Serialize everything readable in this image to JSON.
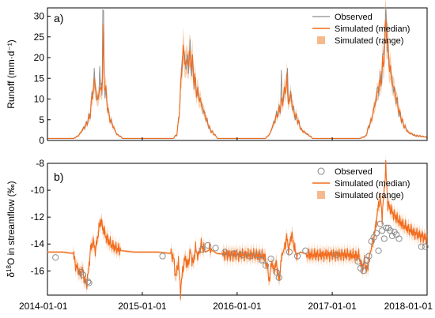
{
  "colors": {
    "observed": "#8c8c8c",
    "simulated_median": "#f26b1d",
    "simulated_range": "#f6b98c",
    "axis": "#000000"
  },
  "x_axis": {
    "tick_labels": [
      "2014-01-01",
      "2015-01-01",
      "2016-01-01",
      "2017-01-01",
      "2018-01-01"
    ],
    "xlim": [
      "2014-01-01",
      "2018-01-01"
    ]
  },
  "chart_data": [
    {
      "panel_label": "a)",
      "type": "line",
      "ylabel": "Runoff (mm·d⁻¹)",
      "ylim": [
        0,
        32
      ],
      "yticks": [
        0,
        5,
        10,
        15,
        20,
        25,
        30
      ],
      "grid": false,
      "legend_position": "top-right",
      "legend": [
        "Observed",
        "Simulated (median)",
        "Simulated (range)"
      ],
      "baseline": 0.5,
      "series": [
        {
          "name": "Simulated (median)",
          "seasons": [
            {
              "start": "2014-04-15",
              "end": "2014-10-15",
              "points": [
                [
                  "2014-04-15",
                  0.6
                ],
                [
                  "2014-05-01",
                  1.2
                ],
                [
                  "2014-05-15",
                  2.5
                ],
                [
                  "2014-06-01",
                  4.0
                ],
                [
                  "2014-06-15",
                  6.5
                ],
                [
                  "2014-06-25",
                  12.5
                ],
                [
                  "2014-07-05",
                  14.0
                ],
                [
                  "2014-07-10",
                  9.0
                ],
                [
                  "2014-07-20",
                  12.0
                ],
                [
                  "2014-08-01",
                  13.0
                ],
                [
                  "2014-08-05",
                  26.0
                ],
                [
                  "2014-08-08",
                  14.0
                ],
                [
                  "2014-08-15",
                  11.0
                ],
                [
                  "2014-08-25",
                  6.0
                ],
                [
                  "2014-09-10",
                  3.5
                ],
                [
                  "2014-09-25",
                  1.5
                ],
                [
                  "2014-10-15",
                  0.7
                ]
              ]
            },
            {
              "start": "2015-05-01",
              "end": "2015-10-15",
              "points": [
                [
                  "2015-05-01",
                  0.6
                ],
                [
                  "2015-05-15",
                  1.5
                ],
                [
                  "2015-05-25",
                  8.0
                ],
                [
                  "2015-06-01",
                  17.0
                ],
                [
                  "2015-06-08",
                  22.0
                ],
                [
                  "2015-06-15",
                  18.5
                ],
                [
                  "2015-06-25",
                  19.0
                ],
                [
                  "2015-07-05",
                  20.5
                ],
                [
                  "2015-07-15",
                  17.0
                ],
                [
                  "2015-07-25",
                  13.0
                ],
                [
                  "2015-08-05",
                  11.0
                ],
                [
                  "2015-08-20",
                  8.0
                ],
                [
                  "2015-09-05",
                  5.0
                ],
                [
                  "2015-09-20",
                  2.5
                ],
                [
                  "2015-10-15",
                  0.8
                ]
              ]
            },
            {
              "start": "2016-04-20",
              "end": "2016-10-15",
              "points": [
                [
                  "2016-04-20",
                  0.6
                ],
                [
                  "2016-05-05",
                  1.5
                ],
                [
                  "2016-05-20",
                  4.0
                ],
                [
                  "2016-06-01",
                  6.0
                ],
                [
                  "2016-06-15",
                  8.0
                ],
                [
                  "2016-06-25",
                  10.0
                ],
                [
                  "2016-07-05",
                  12.5
                ],
                [
                  "2016-07-10",
                  15.0
                ],
                [
                  "2016-07-15",
                  9.0
                ],
                [
                  "2016-07-25",
                  11.0
                ],
                [
                  "2016-08-05",
                  7.0
                ],
                [
                  "2016-08-20",
                  5.0
                ],
                [
                  "2016-09-05",
                  2.5
                ],
                [
                  "2016-10-15",
                  0.7
                ]
              ]
            },
            {
              "start": "2017-04-20",
              "end": "2017-12-31",
              "points": [
                [
                  "2017-04-20",
                  0.6
                ],
                [
                  "2017-05-10",
                  1.0
                ],
                [
                  "2017-05-20",
                  3.0
                ],
                [
                  "2017-06-01",
                  5.0
                ],
                [
                  "2017-06-15",
                  9.0
                ],
                [
                  "2017-06-25",
                  12.0
                ],
                [
                  "2017-07-05",
                  14.0
                ],
                [
                  "2017-07-15",
                  18.0
                ],
                [
                  "2017-07-22",
                  23.0
                ],
                [
                  "2017-07-28",
                  30.0
                ],
                [
                  "2017-08-02",
                  22.0
                ],
                [
                  "2017-08-10",
                  18.0
                ],
                [
                  "2017-08-20",
                  14.0
                ],
                [
                  "2017-09-01",
                  11.0
                ],
                [
                  "2017-09-15",
                  7.0
                ],
                [
                  "2017-10-01",
                  4.0
                ],
                [
                  "2017-10-20",
                  2.0
                ],
                [
                  "2017-11-15",
                  1.2
                ],
                [
                  "2017-12-31",
                  0.8
                ]
              ]
            }
          ]
        },
        {
          "name": "Observed",
          "spikes": [
            [
              "2014-07-01",
              17.5
            ],
            [
              "2014-07-20",
              18.0
            ],
            [
              "2014-08-03",
              31.5
            ],
            [
              "2015-06-05",
              20.0
            ],
            [
              "2016-06-20",
              17.0
            ],
            [
              "2016-07-12",
              17.5
            ],
            [
              "2017-07-20",
              23.0
            ],
            [
              "2017-07-30",
              29.0
            ]
          ]
        },
        {
          "name": "Simulated (range)",
          "band_fraction": 0.18
        }
      ]
    },
    {
      "panel_label": "b)",
      "type": "line",
      "ylabel_main": "δ",
      "ylabel_sup": "18",
      "ylabel_rest": "O in streamflow (‰)",
      "ylim": [
        -17.8,
        -8
      ],
      "yticks": [
        -16,
        -14,
        -12,
        -10,
        -8
      ],
      "grid": false,
      "legend_position": "top-right",
      "legend": [
        "Observed",
        "Simulated (median)",
        "Simulated (range)"
      ],
      "series": [
        {
          "name": "Simulated (median)",
          "points": [
            [
              "2014-01-01",
              -14.6
            ],
            [
              "2014-03-01",
              -14.6
            ],
            [
              "2014-04-10",
              -14.7
            ],
            [
              "2014-04-20",
              -15.6
            ],
            [
              "2014-05-01",
              -16.0
            ],
            [
              "2014-05-08",
              -16.3
            ],
            [
              "2014-05-15",
              -15.8
            ],
            [
              "2014-05-22",
              -16.6
            ],
            [
              "2014-06-01",
              -17.0
            ],
            [
              "2014-06-08",
              -16.0
            ],
            [
              "2014-06-15",
              -14.5
            ],
            [
              "2014-06-25",
              -13.8
            ],
            [
              "2014-07-05",
              -14.5
            ],
            [
              "2014-07-15",
              -13.2
            ],
            [
              "2014-07-25",
              -12.2
            ],
            [
              "2014-08-05",
              -13.0
            ],
            [
              "2014-08-15",
              -13.5
            ],
            [
              "2014-09-01",
              -14.0
            ],
            [
              "2014-09-20",
              -14.3
            ],
            [
              "2014-10-15",
              -14.5
            ],
            [
              "2014-12-01",
              -14.6
            ],
            [
              "2015-03-01",
              -14.6
            ],
            [
              "2015-04-20",
              -14.7
            ],
            [
              "2015-05-01",
              -15.0
            ],
            [
              "2015-05-10",
              -16.5
            ],
            [
              "2015-05-20",
              -15.2
            ],
            [
              "2015-05-28",
              -17.6
            ],
            [
              "2015-06-05",
              -16.0
            ],
            [
              "2015-06-15",
              -15.0
            ],
            [
              "2015-06-25",
              -15.6
            ],
            [
              "2015-07-05",
              -14.6
            ],
            [
              "2015-07-15",
              -15.5
            ],
            [
              "2015-07-25",
              -14.3
            ],
            [
              "2015-08-05",
              -15.0
            ],
            [
              "2015-08-15",
              -14.0
            ],
            [
              "2015-09-01",
              -14.6
            ],
            [
              "2015-09-20",
              -14.4
            ],
            [
              "2015-10-15",
              -14.7
            ],
            [
              "2015-12-01",
              -14.8
            ],
            [
              "2016-03-01",
              -14.8
            ],
            [
              "2016-04-15",
              -14.9
            ],
            [
              "2016-04-25",
              -15.6
            ],
            [
              "2016-05-05",
              -16.8
            ],
            [
              "2016-05-12",
              -15.2
            ],
            [
              "2016-05-20",
              -16.0
            ],
            [
              "2016-06-01",
              -15.4
            ],
            [
              "2016-06-10",
              -16.8
            ],
            [
              "2016-06-20",
              -15.0
            ],
            [
              "2016-07-01",
              -14.3
            ],
            [
              "2016-07-10",
              -13.5
            ],
            [
              "2016-07-18",
              -14.5
            ],
            [
              "2016-07-28",
              -13.2
            ],
            [
              "2016-08-05",
              -14.0
            ],
            [
              "2016-08-15",
              -14.8
            ],
            [
              "2016-09-01",
              -14.6
            ],
            [
              "2016-10-01",
              -14.8
            ],
            [
              "2016-12-01",
              -14.8
            ],
            [
              "2017-03-01",
              -14.8
            ],
            [
              "2017-04-15",
              -14.9
            ],
            [
              "2017-04-25",
              -15.8
            ],
            [
              "2017-05-05",
              -15.3
            ],
            [
              "2017-05-15",
              -16.0
            ],
            [
              "2017-05-25",
              -14.8
            ],
            [
              "2017-06-05",
              -14.0
            ],
            [
              "2017-06-15",
              -13.0
            ],
            [
              "2017-06-25",
              -11.5
            ],
            [
              "2017-07-05",
              -10.5
            ],
            [
              "2017-07-12",
              -12.0
            ],
            [
              "2017-07-20",
              -10.0
            ],
            [
              "2017-07-26",
              -8.2
            ],
            [
              "2017-08-02",
              -11.0
            ],
            [
              "2017-08-10",
              -11.3
            ],
            [
              "2017-08-25",
              -11.8
            ],
            [
              "2017-09-15",
              -12.3
            ],
            [
              "2017-10-15",
              -12.8
            ],
            [
              "2017-11-15",
              -13.2
            ],
            [
              "2017-12-31",
              -13.6
            ]
          ]
        },
        {
          "name": "Observed",
          "points": [
            [
              "2014-02-01",
              -15.0
            ],
            [
              "2014-05-10",
              -16.1
            ],
            [
              "2014-05-18",
              -16.3
            ],
            [
              "2014-06-06",
              -16.8
            ],
            [
              "2014-06-10",
              -16.9
            ],
            [
              "2015-03-20",
              -14.9
            ],
            [
              "2015-08-20",
              -14.4
            ],
            [
              "2015-09-10",
              -14.1
            ],
            [
              "2015-10-10",
              -14.3
            ],
            [
              "2015-11-15",
              -14.6
            ],
            [
              "2015-12-20",
              -14.7
            ],
            [
              "2016-01-20",
              -14.8
            ],
            [
              "2016-02-20",
              -14.9
            ],
            [
              "2016-03-20",
              -14.8
            ],
            [
              "2016-04-05",
              -15.2
            ],
            [
              "2016-04-20",
              -15.6
            ],
            [
              "2016-05-10",
              -15.1
            ],
            [
              "2016-06-01",
              -16.1
            ],
            [
              "2016-06-10",
              -16.5
            ],
            [
              "2016-07-20",
              -14.6
            ],
            [
              "2016-08-20",
              -14.9
            ],
            [
              "2016-09-20",
              -14.5
            ],
            [
              "2017-01-15",
              -14.8
            ],
            [
              "2017-04-10",
              -15.3
            ],
            [
              "2017-04-20",
              -15.8
            ],
            [
              "2017-05-01",
              -16.0
            ],
            [
              "2017-05-08",
              -15.6
            ],
            [
              "2017-05-15",
              -15.2
            ],
            [
              "2017-05-22",
              -14.9
            ],
            [
              "2017-06-01",
              -13.8
            ],
            [
              "2017-06-10",
              -13.5
            ],
            [
              "2017-06-20",
              -13.2
            ],
            [
              "2017-06-28",
              -14.5
            ],
            [
              "2017-07-05",
              -12.5
            ],
            [
              "2017-07-12",
              -13.0
            ],
            [
              "2017-07-20",
              -13.6
            ],
            [
              "2017-07-28",
              -12.8
            ],
            [
              "2017-08-05",
              -12.8
            ],
            [
              "2017-08-12",
              -13.0
            ],
            [
              "2017-08-20",
              -13.4
            ],
            [
              "2017-08-28",
              -13.1
            ],
            [
              "2017-09-05",
              -13.3
            ],
            [
              "2017-09-15",
              -13.6
            ],
            [
              "2017-12-10",
              -14.2
            ],
            [
              "2017-12-25",
              -14.2
            ]
          ]
        },
        {
          "name": "Simulated (range)",
          "band_halfwidth": 0.45
        }
      ]
    }
  ]
}
